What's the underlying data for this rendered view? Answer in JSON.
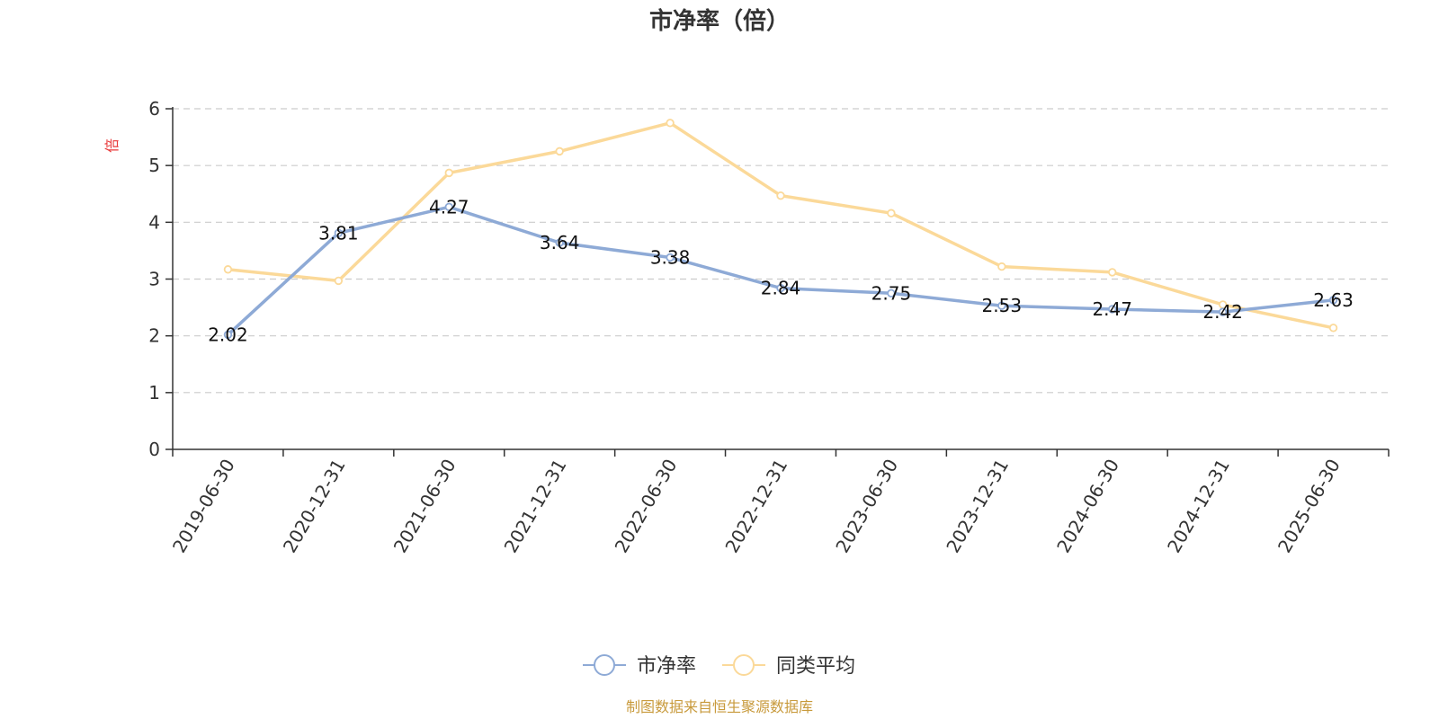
{
  "chart_data": {
    "type": "line",
    "title": "市净率（倍）",
    "ylabel": "倍",
    "ylim": [
      0,
      6
    ],
    "yticks": [
      "0",
      "1",
      "2",
      "3",
      "4",
      "5",
      "6"
    ],
    "grid": true,
    "legend_placement": "bottom-center",
    "categories": [
      "2019-06-30",
      "2020-12-31",
      "2021-06-30",
      "2021-12-31",
      "2022-06-30",
      "2022-12-31",
      "2023-06-30",
      "2023-12-31",
      "2024-06-30",
      "2024-12-31",
      "2025-06-30"
    ],
    "series": [
      {
        "name": "市净率",
        "color": "#8eaad6",
        "values": [
          2.02,
          3.81,
          4.27,
          3.64,
          3.38,
          2.84,
          2.75,
          2.53,
          2.47,
          2.42,
          2.63
        ],
        "labels": [
          "2.02",
          "3.81",
          "4.27",
          "3.64",
          "3.38",
          "2.84",
          "2.75",
          "2.53",
          "2.47",
          "2.42",
          "2.63"
        ]
      },
      {
        "name": "同类平均",
        "color": "#fbd999",
        "values": [
          3.17,
          2.97,
          4.87,
          5.25,
          5.75,
          4.47,
          4.16,
          3.22,
          3.12,
          2.55,
          2.14
        ]
      }
    ],
    "unit_color": "#e8393a",
    "source": "制图数据来自恒生聚源数据库",
    "source_color": "#c89a3c"
  }
}
